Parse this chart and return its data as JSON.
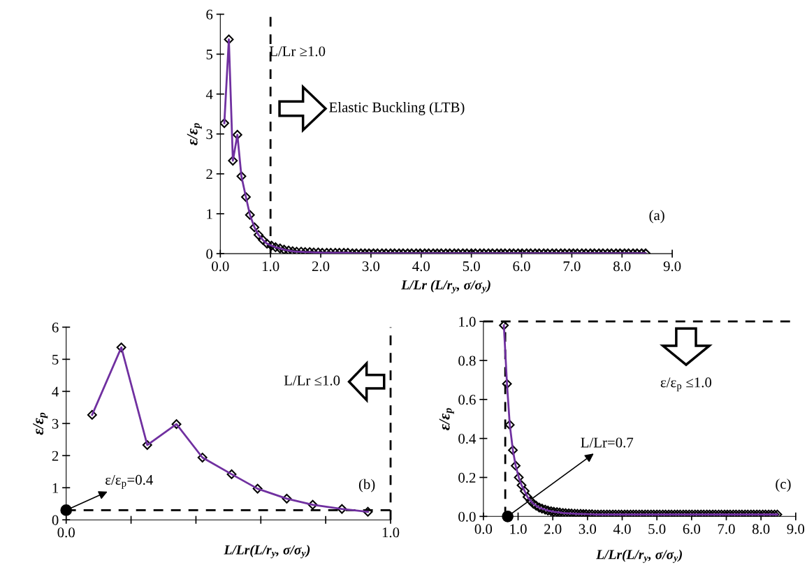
{
  "chart_data": [
    {
      "type": "line",
      "xlabel": "L/Lr (L/r$_{y}$, σ/σ$_{y}$)",
      "ylabel": "ε/ε$_{p}$",
      "marker": "diamond",
      "line_style": "solid",
      "grid": false,
      "legend": false,
      "xlim": [
        0,
        9
      ],
      "ylim": [
        0,
        6
      ],
      "xticks": [
        {
          "value": 0,
          "label": "0.0"
        },
        {
          "value": 1,
          "label": "1.0"
        },
        {
          "value": 2,
          "label": "2.0"
        },
        {
          "value": 3,
          "label": "3.0"
        },
        {
          "value": 4,
          "label": "4.0"
        },
        {
          "value": 5,
          "label": "5.0"
        },
        {
          "value": 6,
          "label": "6.0"
        },
        {
          "value": 7,
          "label": "7.0"
        },
        {
          "value": 8,
          "label": "8.0"
        },
        {
          "value": 9,
          "label": "9.0"
        }
      ],
      "yticks": [
        0,
        1,
        2,
        3,
        4,
        5,
        6
      ],
      "ref_lines": [
        {
          "axis": "x",
          "value": 1.0,
          "label": "L/Lr ≥1.0",
          "color": "#000000",
          "line_style": "dashed"
        }
      ],
      "annotations": [
        "Elastic Buckling (LTB)",
        "(a)"
      ],
      "series": [
        {
          "color": "#7030a0",
          "x": [
            0.08,
            0.17,
            0.25,
            0.34,
            0.42,
            0.51,
            0.59,
            0.68,
            0.76,
            0.85,
            0.93,
            1.02,
            1.1,
            1.19,
            1.27,
            1.36,
            1.44,
            1.52,
            1.61,
            1.69,
            1.78,
            1.86,
            1.95,
            2.03,
            2.12,
            2.2,
            2.29,
            2.37,
            2.46,
            2.54,
            2.63,
            2.71,
            2.8,
            2.88,
            2.96,
            3.05,
            3.13,
            3.22,
            3.3,
            3.39,
            3.47,
            3.56,
            3.64,
            3.73,
            3.81,
            3.9,
            3.98,
            4.07,
            4.15,
            4.24,
            4.32,
            4.4,
            4.49,
            4.57,
            4.66,
            4.74,
            4.83,
            4.91,
            5.0,
            5.08,
            5.17,
            5.25,
            5.34,
            5.42,
            5.51,
            5.59,
            5.67,
            5.76,
            5.84,
            5.93,
            6.01,
            6.1,
            6.18,
            6.27,
            6.35,
            6.44,
            6.52,
            6.61,
            6.69,
            6.78,
            6.86,
            6.95,
            7.03,
            7.11,
            7.2,
            7.28,
            7.37,
            7.45,
            7.54,
            7.62,
            7.71,
            7.79,
            7.88,
            7.96,
            8.05,
            8.13,
            8.22,
            8.3,
            8.39,
            8.47
          ],
          "values": [
            3.27,
            5.37,
            2.33,
            2.98,
            1.94,
            1.42,
            0.97,
            0.66,
            0.47,
            0.34,
            0.25,
            0.2,
            0.16,
            0.13,
            0.1,
            0.08,
            0.06,
            0.05,
            0.05,
            0.04,
            0.04,
            0.03,
            0.03,
            0.02,
            0.02,
            0.02,
            0.02,
            0.02,
            0.02,
            0.02,
            0.01,
            0.01,
            0.01,
            0.01,
            0.01,
            0.01,
            0.01,
            0.01,
            0.01,
            0.01,
            0.01,
            0.01,
            0.01,
            0.01,
            0.01,
            0.01,
            0.01,
            0.01,
            0.01,
            0.01,
            0.01,
            0.01,
            0.01,
            0.01,
            0.01,
            0.01,
            0.01,
            0.01,
            0.01,
            0.01,
            0.01,
            0.01,
            0.01,
            0.01,
            0.01,
            0.01,
            0.01,
            0.01,
            0.01,
            0.01,
            0.01,
            0.01,
            0.01,
            0.01,
            0.01,
            0.01,
            0.01,
            0.01,
            0.01,
            0.01,
            0.01,
            0.01,
            0.01,
            0.01,
            0.01,
            0.01,
            0.01,
            0.01,
            0.01,
            0.01,
            0.01,
            0.01,
            0.01,
            0.01,
            0.01,
            0.01,
            0.01,
            0.01,
            0.01,
            0.01
          ]
        }
      ]
    },
    {
      "type": "line",
      "xlabel": "L/Lr(L/r$_{y}$, σ/σ$_{y}$)",
      "ylabel": "ε/ε$_{p}$",
      "marker": "diamond",
      "line_style": "solid",
      "grid": false,
      "legend": false,
      "xlim": [
        0,
        1
      ],
      "ylim": [
        0,
        6
      ],
      "xticks": [
        {
          "value": 0,
          "label": "0.0"
        },
        {
          "value": 0.2,
          "label": null
        },
        {
          "value": 0.4,
          "label": null
        },
        {
          "value": 0.6,
          "label": null
        },
        {
          "value": 0.8,
          "label": null
        },
        {
          "value": 1,
          "label": "1.0"
        }
      ],
      "yticks": [
        0,
        1,
        2,
        3,
        4,
        5,
        6
      ],
      "ref_lines": [
        {
          "axis": "x",
          "value": 1.0,
          "label": "L/Lr ≤1.0",
          "color": "#000000",
          "line_style": "dashed"
        },
        {
          "axis": "y",
          "value": 0.3,
          "color": "#000000",
          "line_style": "dashed"
        }
      ],
      "annotations": [
        {
          "text": "ε/ε$_{p}$=0.4",
          "x": 0,
          "y": 0.3
        },
        "(b)"
      ],
      "series": [
        {
          "color": "#7030a0",
          "x": [
            0.08,
            0.17,
            0.25,
            0.34,
            0.42,
            0.51,
            0.59,
            0.68,
            0.76,
            0.85,
            0.93
          ],
          "values": [
            3.27,
            5.37,
            2.33,
            2.98,
            1.94,
            1.42,
            0.97,
            0.66,
            0.47,
            0.34,
            0.25
          ]
        }
      ]
    },
    {
      "type": "line",
      "xlabel": "L/Lr(L/r$_{y}$, σ/σ$_{y}$)",
      "ylabel": "ε/ε$_{p}$",
      "marker": "diamond",
      "line_style": "solid",
      "grid": false,
      "legend": false,
      "xlim": [
        0,
        9
      ],
      "ylim": [
        0,
        1
      ],
      "xticks": [
        {
          "value": 0,
          "label": "0.0"
        },
        {
          "value": 1,
          "label": "1.0"
        },
        {
          "value": 2,
          "label": "2.0"
        },
        {
          "value": 3,
          "label": "3.0"
        },
        {
          "value": 4,
          "label": "4.0"
        },
        {
          "value": 5,
          "label": "5.0"
        },
        {
          "value": 6,
          "label": "6.0"
        },
        {
          "value": 7,
          "label": "7.0"
        },
        {
          "value": 8,
          "label": "8.0"
        },
        {
          "value": 9,
          "label": "9.0"
        }
      ],
      "yticks": [
        {
          "value": 0,
          "label": "0.0"
        },
        {
          "value": 0.2,
          "label": "0.2"
        },
        {
          "value": 0.4,
          "label": "0.4"
        },
        {
          "value": 0.6,
          "label": "0.6"
        },
        {
          "value": 0.8,
          "label": "0.8"
        },
        {
          "value": 1,
          "label": "1.0"
        }
      ],
      "ref_lines": [
        {
          "axis": "y",
          "value": 1.0,
          "label": "ε/ε$_{p}$ ≤1.0",
          "color": "#000000",
          "line_style": "dashed"
        },
        {
          "axis": "x",
          "value": 0.63,
          "color": "#000000",
          "line_style": "dashed"
        }
      ],
      "annotations": [
        {
          "text": "L/Lr=0.7",
          "x": 0.7,
          "y": 0
        },
        "(c)"
      ],
      "series": [
        {
          "color": "#7030a0",
          "x": [
            0.59,
            0.68,
            0.76,
            0.85,
            0.93,
            1.02,
            1.1,
            1.19,
            1.27,
            1.36,
            1.44,
            1.52,
            1.61,
            1.69,
            1.78,
            1.86,
            1.95,
            2.03,
            2.12,
            2.2,
            2.29,
            2.37,
            2.46,
            2.54,
            2.63,
            2.71,
            2.8,
            2.88,
            2.96,
            3.05,
            3.13,
            3.22,
            3.3,
            3.39,
            3.47,
            3.56,
            3.64,
            3.73,
            3.81,
            3.9,
            3.98,
            4.07,
            4.15,
            4.24,
            4.32,
            4.4,
            4.49,
            4.57,
            4.66,
            4.74,
            4.83,
            4.91,
            5.0,
            5.08,
            5.17,
            5.25,
            5.34,
            5.42,
            5.51,
            5.59,
            5.67,
            5.76,
            5.84,
            5.93,
            6.01,
            6.1,
            6.18,
            6.27,
            6.35,
            6.44,
            6.52,
            6.61,
            6.69,
            6.78,
            6.86,
            6.95,
            7.03,
            7.11,
            7.2,
            7.28,
            7.37,
            7.45,
            7.54,
            7.62,
            7.71,
            7.79,
            7.88,
            7.96,
            8.05,
            8.13,
            8.22,
            8.3,
            8.39,
            8.47
          ],
          "values": [
            0.98,
            0.68,
            0.47,
            0.34,
            0.26,
            0.2,
            0.16,
            0.13,
            0.1,
            0.08,
            0.065,
            0.055,
            0.045,
            0.04,
            0.035,
            0.03,
            0.027,
            0.024,
            0.022,
            0.02,
            0.018,
            0.017,
            0.016,
            0.015,
            0.014,
            0.013,
            0.013,
            0.012,
            0.012,
            0.011,
            0.011,
            0.01,
            0.01,
            0.01,
            0.01,
            0.01,
            0.01,
            0.01,
            0.01,
            0.01,
            0.01,
            0.01,
            0.01,
            0.01,
            0.01,
            0.01,
            0.01,
            0.01,
            0.01,
            0.01,
            0.01,
            0.01,
            0.01,
            0.01,
            0.01,
            0.01,
            0.01,
            0.01,
            0.01,
            0.01,
            0.01,
            0.01,
            0.01,
            0.01,
            0.01,
            0.01,
            0.01,
            0.01,
            0.01,
            0.01,
            0.01,
            0.01,
            0.01,
            0.01,
            0.01,
            0.01,
            0.01,
            0.01,
            0.01,
            0.01,
            0.01,
            0.01,
            0.01,
            0.01,
            0.01,
            0.01,
            0.01,
            0.01,
            0.01,
            0.01,
            0.01,
            0.01,
            0.01,
            0.01
          ]
        }
      ]
    }
  ]
}
